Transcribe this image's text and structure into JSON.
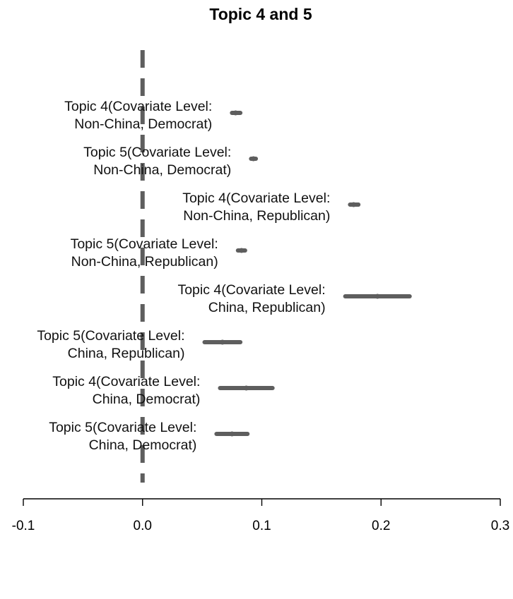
{
  "chart_data": {
    "type": "dot-and-whisker",
    "title": "Topic 4 and 5",
    "xlabel": "",
    "ylabel": "",
    "xlim": [
      -0.1,
      0.3
    ],
    "x_ticks": [
      "-0.1",
      "0.0",
      "0.1",
      "0.2",
      "0.3"
    ],
    "x_tick_values": [
      -0.1,
      0.0,
      0.1,
      0.2,
      0.3
    ],
    "reference_line": 0,
    "colors": {
      "estimate": "#5e5e5e",
      "reference": "#5e5e5e",
      "axis": "#000000"
    },
    "estimates": [
      {
        "label_line1": "Topic 4(Covariate Level:",
        "label_line2": "Non-China, Democrat)",
        "estimate": 0.078,
        "ci_low": 0.075,
        "ci_high": 0.082
      },
      {
        "label_line1": "Topic 5(Covariate Level:",
        "label_line2": "Non-China, Democrat)",
        "estimate": 0.093,
        "ci_low": 0.091,
        "ci_high": 0.095
      },
      {
        "label_line1": "Topic 4(Covariate Level:",
        "label_line2": "Non-China, Republican)",
        "estimate": 0.177,
        "ci_low": 0.174,
        "ci_high": 0.181
      },
      {
        "label_line1": "Topic 5(Covariate Level:",
        "label_line2": "Non-China, Republican)",
        "estimate": 0.083,
        "ci_low": 0.08,
        "ci_high": 0.086
      },
      {
        "label_line1": "Topic 4(Covariate Level:",
        "label_line2": "China, Republican)",
        "estimate": 0.197,
        "ci_low": 0.17,
        "ci_high": 0.224
      },
      {
        "label_line1": "Topic 5(Covariate Level:",
        "label_line2": "China, Republican)",
        "estimate": 0.067,
        "ci_low": 0.052,
        "ci_high": 0.082
      },
      {
        "label_line1": "Topic 4(Covariate Level:",
        "label_line2": "China, Democrat)",
        "estimate": 0.087,
        "ci_low": 0.065,
        "ci_high": 0.109
      },
      {
        "label_line1": "Topic 5(Covariate Level:",
        "label_line2": "China, Democrat)",
        "estimate": 0.075,
        "ci_low": 0.062,
        "ci_high": 0.088
      }
    ]
  }
}
